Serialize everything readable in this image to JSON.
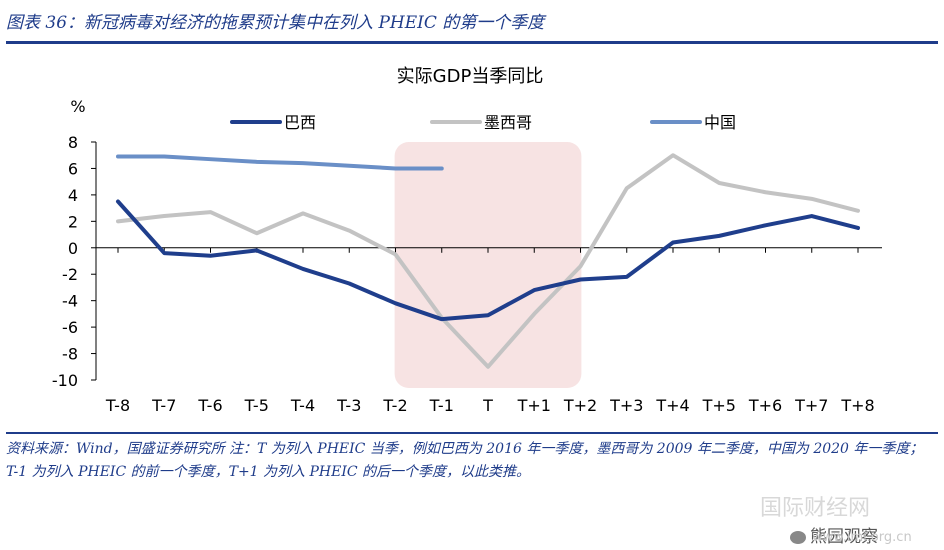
{
  "header": {
    "title": "图表 36：新冠病毒对经济的拖累预计集中在列入 PHEIC 的第一个季度"
  },
  "footnote": "资料来源：Wind，国盛证券研究所 注：T 为列入 PHEIC 当季，例如巴西为 2016 年一季度，墨西哥为 2009 年二季度，中国为 2020 年一季度；T-1 为列入 PHEIC 的前一个季度，T+1 为列入 PHEIC 的后一个季度，以此类推。",
  "watermark": {
    "stamp": "国际财经网",
    "wechat": "熊园观察",
    "site": "www.imi.org.cn"
  },
  "colors": {
    "brazil": "#1f3e8c",
    "mexico": "#c3c3c3",
    "china": "#6a8fc7",
    "highlight": "#f7e3e3",
    "theme": "#1f3c8a"
  },
  "chart_data": {
    "type": "line",
    "title": "实际GDP当季同比",
    "ylabel": "%",
    "xlabel": "",
    "ylim": [
      -10,
      8
    ],
    "yticks": [
      8,
      6,
      4,
      2,
      0,
      -2,
      -4,
      -6,
      -8,
      -10
    ],
    "grid": false,
    "legend_position": "top",
    "categories": [
      "T-8",
      "T-7",
      "T-6",
      "T-5",
      "T-4",
      "T-3",
      "T-2",
      "T-1",
      "T",
      "T+1",
      "T+2",
      "T+3",
      "T+4",
      "T+5",
      "T+6",
      "T+7",
      "T+8"
    ],
    "highlight_range": [
      "T-2",
      "T+2"
    ],
    "series": [
      {
        "name": "巴西",
        "color_key": "brazil",
        "values": [
          3.5,
          -0.4,
          -0.6,
          -0.2,
          -1.6,
          -2.7,
          -4.2,
          -5.4,
          -5.1,
          -3.2,
          -2.4,
          -2.2,
          0.4,
          0.9,
          1.7,
          2.4,
          1.5
        ]
      },
      {
        "name": "墨西哥",
        "color_key": "mexico",
        "values": [
          2.0,
          2.4,
          2.7,
          1.1,
          2.6,
          1.3,
          -0.5,
          -5.3,
          -9.0,
          -5.0,
          -1.4,
          4.5,
          7.0,
          4.9,
          4.2,
          3.7,
          2.8
        ]
      },
      {
        "name": "中国",
        "color_key": "china",
        "values": [
          6.9,
          6.9,
          6.7,
          6.5,
          6.4,
          6.2,
          6.0,
          6.0,
          null,
          null,
          null,
          null,
          null,
          null,
          null,
          null,
          null
        ]
      }
    ]
  }
}
